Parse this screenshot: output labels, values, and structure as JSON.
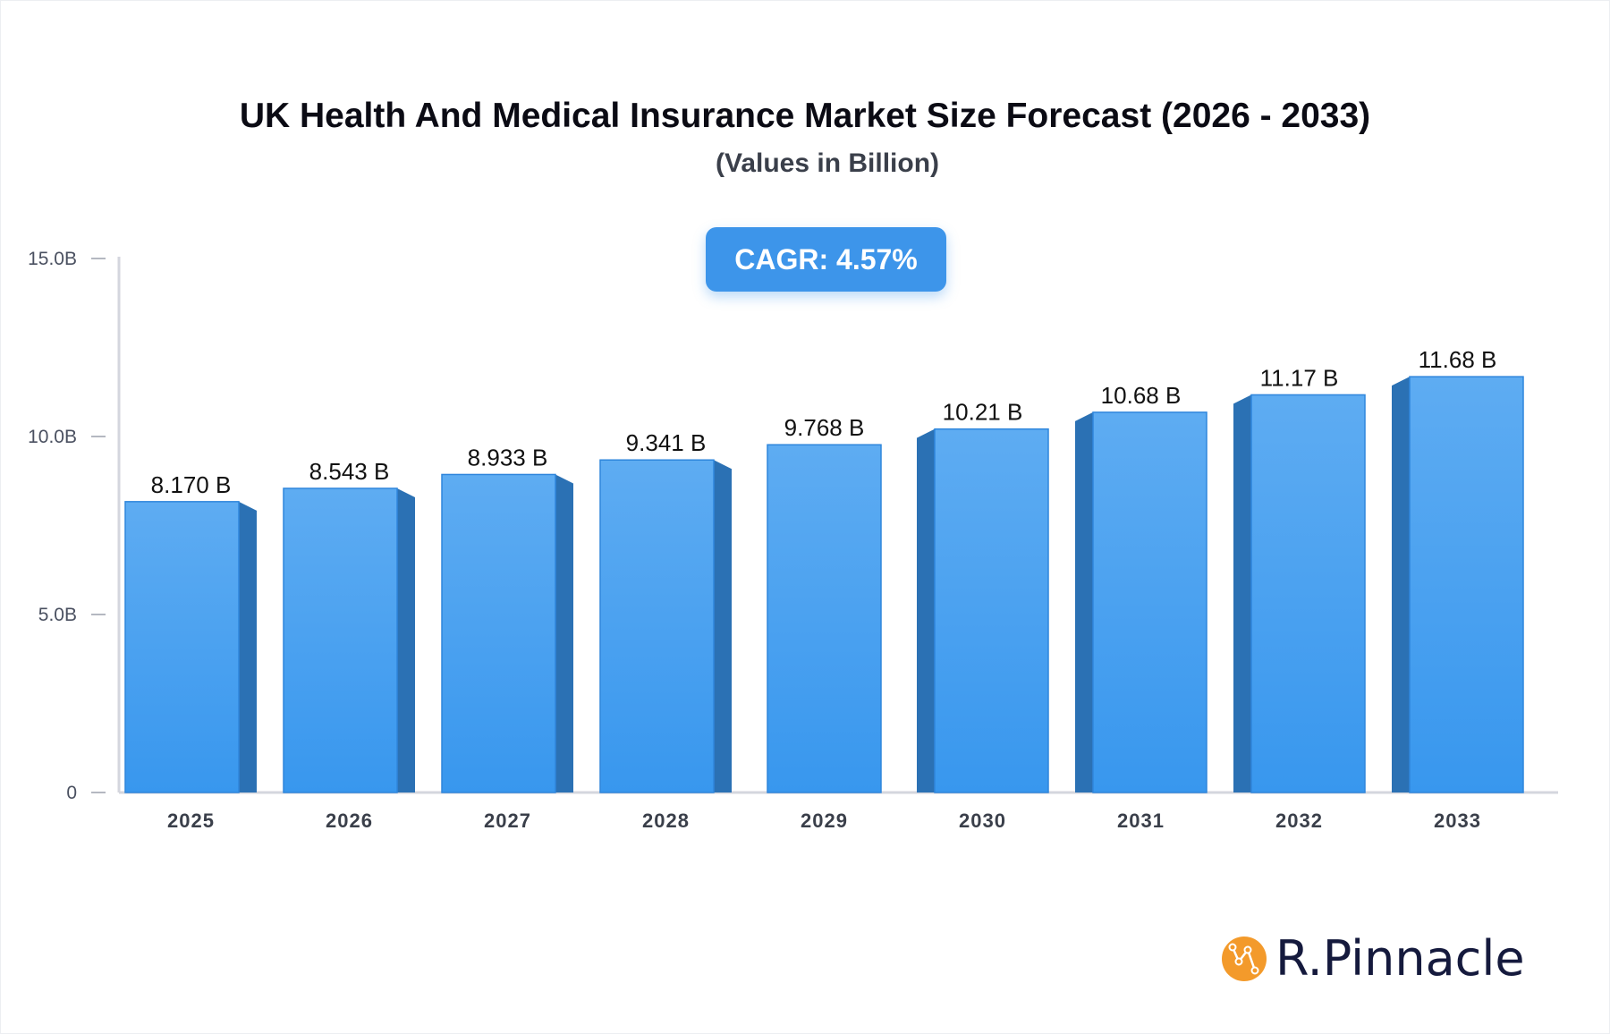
{
  "chart_data": {
    "type": "bar",
    "title": "UK Health And Medical Insurance Market Size Forecast (2026 - 2033)",
    "subtitle": "(Values in Billion)",
    "annotation": "CAGR: 4.57%",
    "categories": [
      "2025",
      "2026",
      "2027",
      "2028",
      "2029",
      "2030",
      "2031",
      "2032",
      "2033"
    ],
    "values": [
      8.17,
      8.543,
      8.933,
      9.341,
      9.768,
      10.21,
      10.68,
      11.17,
      11.68
    ],
    "data_labels": [
      "8.170 B",
      "8.543 B",
      "8.933 B",
      "9.341 B",
      "9.768 B",
      "10.21 B",
      "10.68 B",
      "11.17 B",
      "11.68 B"
    ],
    "y_ticks": [
      0,
      5,
      10,
      15
    ],
    "y_tick_labels": [
      "0",
      "5.0B",
      "10.0B",
      "15.0B"
    ],
    "ylim": [
      0,
      15
    ],
    "grid": false,
    "colors": {
      "bar_top": "#5eacf2",
      "bar_bottom": "#3897ee",
      "bar_side": "#2b71b4",
      "axis": "#d4d6de"
    }
  },
  "brand": {
    "name": "R.Pinnacle",
    "logo_color": "#f39a2b"
  }
}
